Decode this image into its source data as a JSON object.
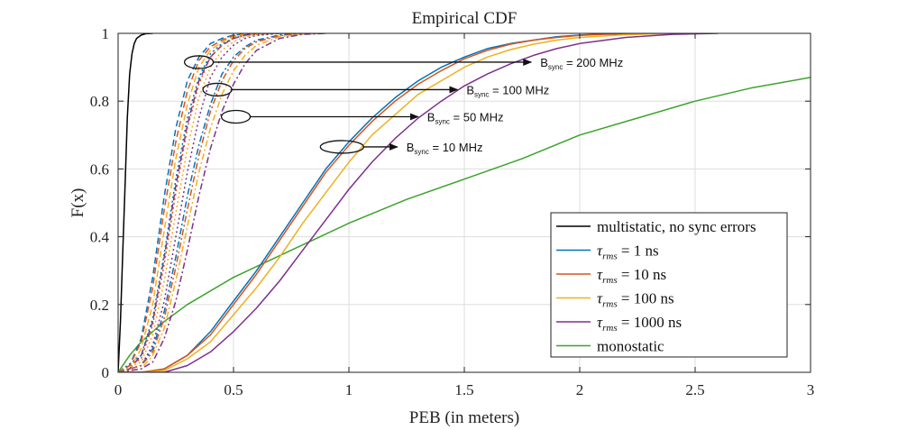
{
  "chart_data": {
    "type": "line",
    "title": "Empirical CDF",
    "xlabel": "PEB (in meters)",
    "ylabel": "F(x)",
    "xlim": [
      0,
      3
    ],
    "ylim": [
      0,
      1
    ],
    "grid": true,
    "x_ticks": [
      0,
      0.5,
      1,
      1.5,
      2,
      2.5,
      3
    ],
    "x_tick_labels": [
      "0",
      "0.5",
      "1",
      "1.5",
      "2",
      "2.5",
      "3"
    ],
    "y_ticks": [
      0,
      0.2,
      0.4,
      0.6,
      0.8,
      1
    ],
    "y_tick_labels": [
      "0",
      "0.2",
      "0.4",
      "0.6",
      "0.8",
      "1"
    ],
    "legend_position": "bottom-right",
    "legend": [
      {
        "label": "multistatic, no sync errors",
        "color": "#000000"
      },
      {
        "label": "τrms = 1 ns",
        "tau": "1 ns",
        "color": "#0072BD"
      },
      {
        "label": "τrms = 10 ns",
        "tau": "10 ns",
        "color": "#D95319"
      },
      {
        "label": "τrms = 100 ns",
        "tau": "100 ns",
        "color": "#EDB120"
      },
      {
        "label": "τrms = 1000 ns",
        "tau": "1000 ns",
        "color": "#7E2F8E"
      },
      {
        "label": "monostatic",
        "color": "#3BA32B"
      }
    ],
    "series": [
      {
        "name": "multistatic, no sync errors",
        "color": "#000000",
        "style": "solid",
        "x": [
          0,
          0.01,
          0.02,
          0.03,
          0.04,
          0.05,
          0.06,
          0.07,
          0.08,
          0.1,
          0.12,
          0.15
        ],
        "y": [
          0,
          0.15,
          0.35,
          0.55,
          0.75,
          0.88,
          0.94,
          0.97,
          0.985,
          0.995,
          0.999,
          1.0
        ]
      },
      {
        "name": "monostatic",
        "color": "#3BA32B",
        "style": "solid",
        "x": [
          0,
          0.05,
          0.1,
          0.2,
          0.3,
          0.5,
          0.75,
          1.0,
          1.25,
          1.5,
          1.75,
          2.0,
          2.25,
          2.5,
          2.75,
          3.0
        ],
        "y": [
          0,
          0.05,
          0.09,
          0.15,
          0.2,
          0.28,
          0.36,
          0.44,
          0.51,
          0.57,
          0.63,
          0.7,
          0.75,
          0.8,
          0.84,
          0.87
        ]
      },
      {
        "name": "τrms = 1 ns, Bsync = 200 MHz",
        "color": "#0072BD",
        "style": "dashed",
        "x": [
          0,
          0.05,
          0.1,
          0.15,
          0.2,
          0.25,
          0.3,
          0.35,
          0.4,
          0.45,
          0.5,
          0.55,
          0.6,
          0.7
        ],
        "y": [
          0,
          0.02,
          0.1,
          0.28,
          0.52,
          0.72,
          0.86,
          0.93,
          0.97,
          0.985,
          0.995,
          0.998,
          1.0,
          1.0
        ]
      },
      {
        "name": "τrms = 10 ns, Bsync = 200 MHz",
        "color": "#D95319",
        "style": "dashed",
        "x": [
          0,
          0.05,
          0.1,
          0.15,
          0.2,
          0.25,
          0.3,
          0.35,
          0.4,
          0.45,
          0.5,
          0.55,
          0.6,
          0.7
        ],
        "y": [
          0,
          0.02,
          0.09,
          0.25,
          0.48,
          0.68,
          0.83,
          0.92,
          0.96,
          0.98,
          0.993,
          0.998,
          1.0,
          1.0
        ]
      },
      {
        "name": "τrms = 100 ns, Bsync = 200 MHz",
        "color": "#EDB120",
        "style": "dashed",
        "x": [
          0,
          0.05,
          0.1,
          0.15,
          0.2,
          0.25,
          0.3,
          0.35,
          0.4,
          0.45,
          0.5,
          0.55,
          0.6,
          0.7
        ],
        "y": [
          0,
          0.01,
          0.07,
          0.2,
          0.42,
          0.63,
          0.79,
          0.9,
          0.95,
          0.975,
          0.99,
          0.997,
          1.0,
          1.0
        ]
      },
      {
        "name": "τrms = 1000 ns, Bsync = 200 MHz",
        "color": "#7E2F8E",
        "style": "dashed",
        "x": [
          0,
          0.05,
          0.1,
          0.15,
          0.2,
          0.25,
          0.3,
          0.35,
          0.4,
          0.45,
          0.5,
          0.55,
          0.6,
          0.7
        ],
        "y": [
          0,
          0.01,
          0.05,
          0.15,
          0.34,
          0.55,
          0.73,
          0.86,
          0.93,
          0.965,
          0.985,
          0.995,
          1.0,
          1.0
        ]
      },
      {
        "name": "τrms = 1 ns, Bsync = 100 MHz",
        "color": "#0072BD",
        "style": "dotted",
        "x": [
          0,
          0.1,
          0.15,
          0.2,
          0.25,
          0.3,
          0.35,
          0.4,
          0.45,
          0.5,
          0.55,
          0.6,
          0.7,
          0.8
        ],
        "y": [
          0,
          0.05,
          0.16,
          0.35,
          0.57,
          0.75,
          0.87,
          0.94,
          0.97,
          0.985,
          0.995,
          0.998,
          1.0,
          1.0
        ]
      },
      {
        "name": "τrms = 10 ns, Bsync = 100 MHz",
        "color": "#D95319",
        "style": "dotted",
        "x": [
          0,
          0.1,
          0.15,
          0.2,
          0.25,
          0.3,
          0.35,
          0.4,
          0.45,
          0.5,
          0.55,
          0.6,
          0.7,
          0.8
        ],
        "y": [
          0,
          0.04,
          0.14,
          0.32,
          0.53,
          0.72,
          0.85,
          0.93,
          0.965,
          0.985,
          0.993,
          0.998,
          1.0,
          1.0
        ]
      },
      {
        "name": "τrms = 100 ns, Bsync = 100 MHz",
        "color": "#EDB120",
        "style": "dotted",
        "x": [
          0,
          0.1,
          0.15,
          0.2,
          0.25,
          0.3,
          0.35,
          0.4,
          0.45,
          0.5,
          0.55,
          0.6,
          0.7,
          0.8
        ],
        "y": [
          0,
          0.03,
          0.11,
          0.27,
          0.47,
          0.66,
          0.81,
          0.9,
          0.95,
          0.975,
          0.99,
          0.996,
          1.0,
          1.0
        ]
      },
      {
        "name": "τrms = 1000 ns, Bsync = 100 MHz",
        "color": "#7E2F8E",
        "style": "dotted",
        "x": [
          0,
          0.1,
          0.15,
          0.2,
          0.25,
          0.3,
          0.35,
          0.4,
          0.45,
          0.5,
          0.55,
          0.6,
          0.7,
          0.8
        ],
        "y": [
          0,
          0.02,
          0.08,
          0.21,
          0.4,
          0.59,
          0.75,
          0.87,
          0.93,
          0.965,
          0.985,
          0.994,
          1.0,
          1.0
        ]
      },
      {
        "name": "τrms = 1 ns, Bsync = 50 MHz",
        "color": "#0072BD",
        "style": "dashdot",
        "x": [
          0,
          0.1,
          0.15,
          0.2,
          0.25,
          0.3,
          0.35,
          0.4,
          0.45,
          0.5,
          0.55,
          0.6,
          0.7,
          0.8,
          0.9
        ],
        "y": [
          0,
          0.02,
          0.07,
          0.18,
          0.34,
          0.52,
          0.67,
          0.79,
          0.88,
          0.93,
          0.96,
          0.98,
          0.995,
          1.0,
          1.0
        ]
      },
      {
        "name": "τrms = 10 ns, Bsync = 50 MHz",
        "color": "#D95319",
        "style": "dashdot",
        "x": [
          0,
          0.1,
          0.15,
          0.2,
          0.25,
          0.3,
          0.35,
          0.4,
          0.45,
          0.5,
          0.55,
          0.6,
          0.7,
          0.8,
          0.9
        ],
        "y": [
          0,
          0.02,
          0.06,
          0.16,
          0.31,
          0.48,
          0.64,
          0.77,
          0.86,
          0.92,
          0.955,
          0.975,
          0.993,
          1.0,
          1.0
        ]
      },
      {
        "name": "τrms = 100 ns, Bsync = 50 MHz",
        "color": "#EDB120",
        "style": "dashdot",
        "x": [
          0,
          0.1,
          0.15,
          0.2,
          0.25,
          0.3,
          0.35,
          0.4,
          0.45,
          0.5,
          0.55,
          0.6,
          0.7,
          0.8,
          0.9
        ],
        "y": [
          0,
          0.01,
          0.05,
          0.13,
          0.27,
          0.43,
          0.59,
          0.72,
          0.82,
          0.89,
          0.935,
          0.965,
          0.99,
          0.998,
          1.0
        ]
      },
      {
        "name": "τrms = 1000 ns, Bsync = 50 MHz",
        "color": "#7E2F8E",
        "style": "dashdot",
        "x": [
          0,
          0.1,
          0.15,
          0.2,
          0.25,
          0.3,
          0.35,
          0.4,
          0.45,
          0.5,
          0.55,
          0.6,
          0.7,
          0.8,
          0.9
        ],
        "y": [
          0,
          0.01,
          0.03,
          0.1,
          0.21,
          0.36,
          0.52,
          0.66,
          0.77,
          0.85,
          0.91,
          0.95,
          0.985,
          0.997,
          1.0
        ]
      },
      {
        "name": "τrms = 1 ns, Bsync = 10 MHz",
        "color": "#0072BD",
        "style": "solid",
        "x": [
          0,
          0.1,
          0.2,
          0.3,
          0.4,
          0.5,
          0.6,
          0.7,
          0.8,
          0.9,
          1.0,
          1.1,
          1.2,
          1.3,
          1.4,
          1.5,
          1.6,
          1.7,
          1.8,
          1.9,
          2.0,
          2.1,
          2.3
        ],
        "y": [
          0,
          0.0,
          0.01,
          0.05,
          0.12,
          0.21,
          0.3,
          0.4,
          0.5,
          0.6,
          0.68,
          0.75,
          0.81,
          0.86,
          0.9,
          0.93,
          0.955,
          0.97,
          0.98,
          0.99,
          0.995,
          0.998,
          1.0
        ]
      },
      {
        "name": "τrms = 10 ns, Bsync = 10 MHz",
        "color": "#D95319",
        "style": "solid",
        "x": [
          0,
          0.1,
          0.2,
          0.3,
          0.4,
          0.5,
          0.6,
          0.7,
          0.8,
          0.9,
          1.0,
          1.1,
          1.2,
          1.3,
          1.4,
          1.5,
          1.6,
          1.7,
          1.8,
          1.9,
          2.0,
          2.1,
          2.3
        ],
        "y": [
          0,
          0.0,
          0.01,
          0.05,
          0.11,
          0.2,
          0.29,
          0.39,
          0.49,
          0.59,
          0.67,
          0.74,
          0.8,
          0.85,
          0.89,
          0.925,
          0.95,
          0.968,
          0.98,
          0.988,
          0.994,
          0.997,
          1.0
        ]
      },
      {
        "name": "τrms = 100 ns, Bsync = 10 MHz",
        "color": "#EDB120",
        "style": "solid",
        "x": [
          0,
          0.1,
          0.2,
          0.3,
          0.4,
          0.5,
          0.6,
          0.7,
          0.8,
          0.9,
          1.0,
          1.1,
          1.2,
          1.3,
          1.4,
          1.5,
          1.6,
          1.7,
          1.8,
          1.9,
          2.0,
          2.2,
          2.4
        ],
        "y": [
          0,
          0.0,
          0.005,
          0.04,
          0.09,
          0.17,
          0.25,
          0.34,
          0.44,
          0.53,
          0.62,
          0.7,
          0.76,
          0.82,
          0.86,
          0.9,
          0.93,
          0.952,
          0.968,
          0.98,
          0.988,
          0.996,
          1.0
        ]
      },
      {
        "name": "τrms = 1000 ns, Bsync = 10 MHz",
        "color": "#7E2F8E",
        "style": "solid",
        "x": [
          0,
          0.1,
          0.2,
          0.3,
          0.4,
          0.5,
          0.6,
          0.7,
          0.8,
          0.9,
          1.0,
          1.1,
          1.2,
          1.3,
          1.4,
          1.5,
          1.6,
          1.7,
          1.8,
          1.9,
          2.0,
          2.2,
          2.4,
          2.6
        ],
        "y": [
          0,
          0.0,
          0.0,
          0.02,
          0.06,
          0.12,
          0.19,
          0.27,
          0.36,
          0.45,
          0.54,
          0.62,
          0.69,
          0.75,
          0.8,
          0.845,
          0.88,
          0.91,
          0.935,
          0.955,
          0.97,
          0.988,
          0.997,
          1.0
        ]
      }
    ],
    "annotations": [
      {
        "label": "B",
        "sub": "sync",
        "rest": " = 200 MHz",
        "ellipse_center": [
          0.35,
          0.915
        ],
        "arrow_to": [
          1.79,
          0.915
        ]
      },
      {
        "label": "B",
        "sub": "sync",
        "rest": " = 100 MHz",
        "ellipse_center": [
          0.43,
          0.834
        ],
        "arrow_to": [
          1.47,
          0.834
        ]
      },
      {
        "label": "B",
        "sub": "sync",
        "rest": " = 50 MHz",
        "ellipse_center": [
          0.51,
          0.754
        ],
        "arrow_to": [
          1.3,
          0.754
        ]
      },
      {
        "label": "B",
        "sub": "sync",
        "rest": " = 10 MHz",
        "ellipse_center": [
          0.97,
          0.665
        ],
        "arrow_to": [
          1.21,
          0.665
        ]
      }
    ]
  }
}
